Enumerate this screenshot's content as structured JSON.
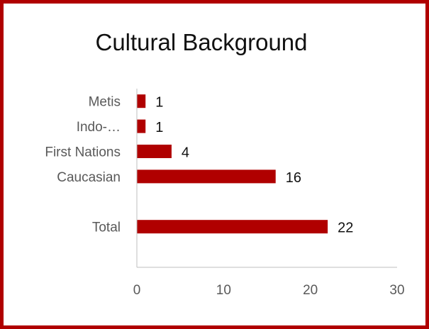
{
  "chart_data": {
    "type": "bar",
    "orientation": "horizontal",
    "title": "Cultural Background",
    "categories": [
      "Metis",
      "Indo-…",
      "First Nations",
      "Caucasian",
      "",
      "Total"
    ],
    "values": [
      1,
      1,
      4,
      16,
      null,
      22
    ],
    "xlim": [
      0,
      30
    ],
    "xticks": [
      "0",
      "10",
      "20",
      "30"
    ],
    "grid": false,
    "legend": "none",
    "bar_color": "#b00000",
    "frame_color": "#b00000"
  }
}
